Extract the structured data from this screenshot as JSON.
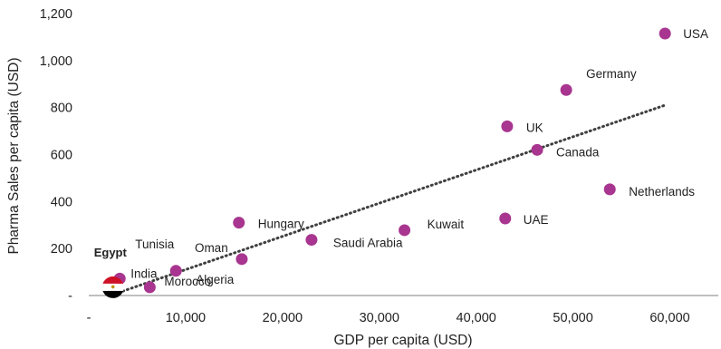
{
  "chart_data": {
    "type": "scatter",
    "title": "",
    "xlabel": "GDP per capita (USD)",
    "ylabel": "Pharma Sales per capita (USD)",
    "xlim": [
      0,
      65000
    ],
    "ylim": [
      0,
      1200
    ],
    "x_ticks": [
      0,
      10000,
      20000,
      30000,
      40000,
      50000,
      60000
    ],
    "y_ticks": [
      0,
      200,
      400,
      600,
      800,
      1000,
      1200
    ],
    "x_tick_labels": [
      "-",
      "10,000",
      "20,000",
      "30,000",
      "40,000",
      "50,000",
      "60,000"
    ],
    "y_tick_labels": [
      "-",
      "200",
      "400",
      "600",
      "800",
      "1,000",
      "1,200"
    ],
    "grid": false,
    "marker_color": "#a8358f",
    "highlight_color": "#1f4e79",
    "trendline": {
      "style": "dotted",
      "color": "#404040",
      "from": [
        2200,
        0
      ],
      "to": [
        59500,
        810
      ]
    },
    "points": [
      {
        "name": "USA",
        "x": 59500,
        "y": 1115
      },
      {
        "name": "Germany",
        "x": 49300,
        "y": 875
      },
      {
        "name": "UK",
        "x": 43200,
        "y": 720
      },
      {
        "name": "Canada",
        "x": 46300,
        "y": 620
      },
      {
        "name": "Netherlands",
        "x": 53800,
        "y": 452
      },
      {
        "name": "UAE",
        "x": 43000,
        "y": 328
      },
      {
        "name": "Kuwait",
        "x": 32600,
        "y": 278
      },
      {
        "name": "Saudi Arabia",
        "x": 23000,
        "y": 237
      },
      {
        "name": "Hungary",
        "x": 15500,
        "y": 310
      },
      {
        "name": "Oman",
        "x": 15800,
        "y": 155
      },
      {
        "name": "Algeria",
        "x": 9000,
        "y": 105
      },
      {
        "name": "Tunisia",
        "x": 9000,
        "y": 105
      },
      {
        "name": "India",
        "x": 3200,
        "y": 72
      },
      {
        "name": "Morocco",
        "x": 6300,
        "y": 35
      },
      {
        "name": "Egypt",
        "x": 2500,
        "y": 35,
        "highlight": true,
        "flag": true
      }
    ]
  }
}
